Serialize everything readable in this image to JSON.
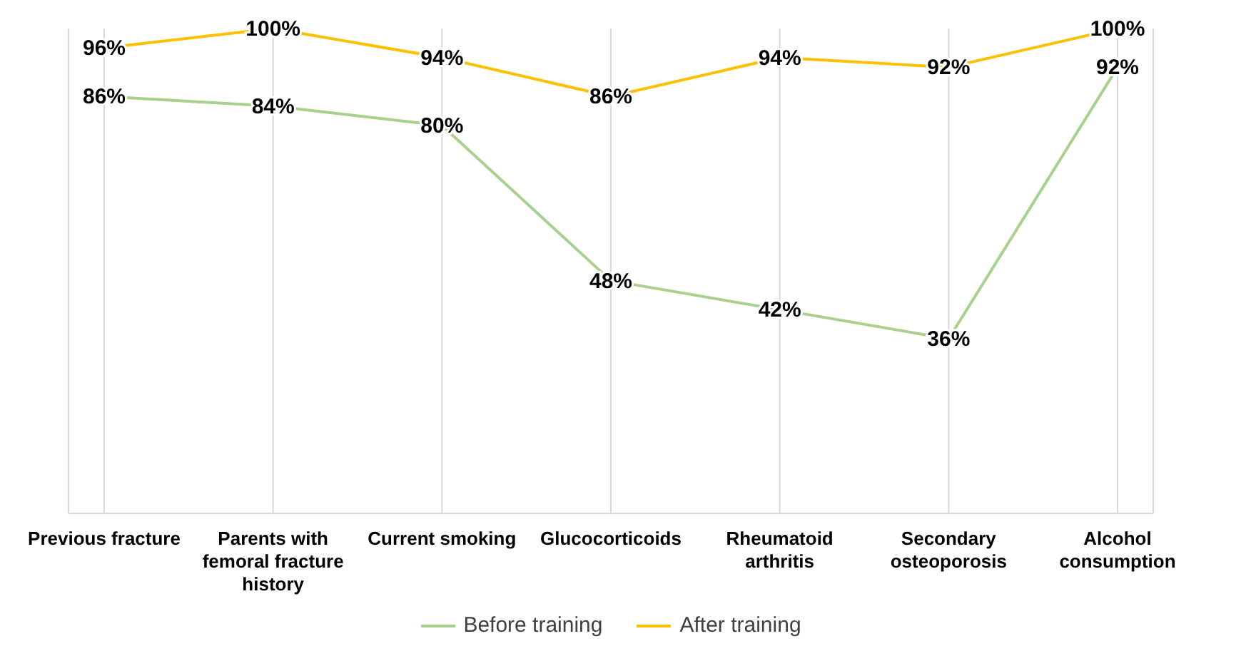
{
  "chart_data": {
    "type": "line",
    "categories": [
      "Previous fracture",
      "Parents with femoral fracture history",
      "Current smoking",
      "Glucocorticoids",
      "Rheumatoid arthritis",
      "Secondary osteoporosis",
      "Alcohol consumption"
    ],
    "series": [
      {
        "name": "Before training",
        "color": "#a9d18e",
        "values": [
          86,
          84,
          80,
          48,
          42,
          36,
          92
        ],
        "value_labels": [
          "86%",
          "84%",
          "80%",
          "48%",
          "42%",
          "36%",
          "92%"
        ]
      },
      {
        "name": "After training",
        "color": "#ffc000",
        "values": [
          96,
          100,
          94,
          86,
          94,
          92,
          100
        ],
        "value_labels": [
          "96%",
          "100%",
          "94%",
          "86%",
          "94%",
          "92%",
          "100%"
        ]
      }
    ],
    "grid": "x",
    "legend": "bottom",
    "marker": "none",
    "line_style": "solid"
  }
}
